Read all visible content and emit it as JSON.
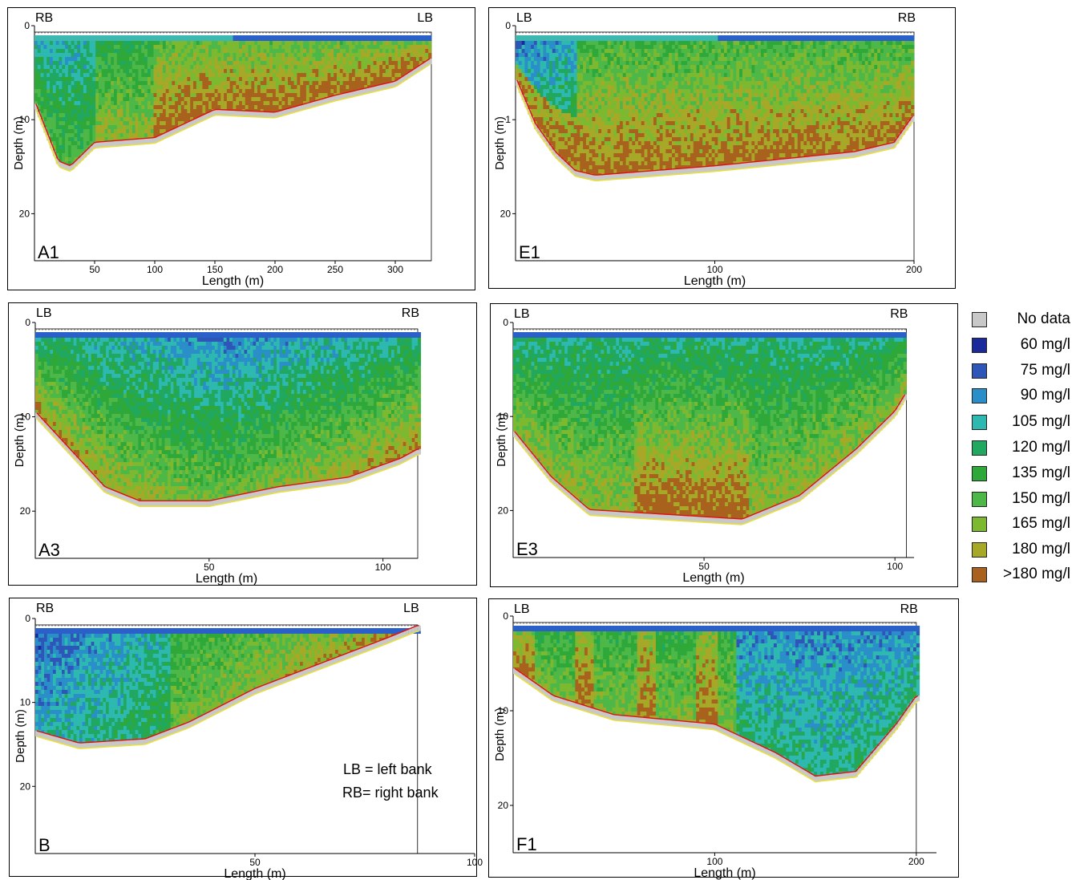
{
  "legend": {
    "items": [
      {
        "label": "No data",
        "color": "#c8c8c8"
      },
      {
        "label": "60 mg/l",
        "color": "#1a2a9a"
      },
      {
        "label": "75 mg/l",
        "color": "#2e56b8"
      },
      {
        "label": "90 mg/l",
        "color": "#2a8fc8"
      },
      {
        "label": "105 mg/l",
        "color": "#2db8b0"
      },
      {
        "label": "120 mg/l",
        "color": "#20a860"
      },
      {
        "label": "135 mg/l",
        "color": "#2fa83a"
      },
      {
        "label": "150 mg/l",
        "color": "#4db848"
      },
      {
        "label": "165 mg/l",
        "color": "#7cb830"
      },
      {
        "label": "180 mg/l",
        "color": "#a8a828"
      },
      {
        "label": ">180 mg/l",
        "color": "#a8621e"
      }
    ]
  },
  "notes": {
    "lb": "LB = left bank",
    "rb": "RB= right bank"
  },
  "chart_data": [
    {
      "type": "heatmap",
      "panel_label": "A1",
      "bank_left": "RB",
      "bank_right": "LB",
      "xlabel": "Length (m)",
      "ylabel": "Depth (m)",
      "x_ticks": [
        "50",
        "100",
        "150",
        "200",
        "250",
        "300"
      ],
      "y_ticks": [
        "0",
        "10",
        "20"
      ],
      "xlim": [
        0,
        330
      ],
      "ylim": [
        0,
        25
      ],
      "bed_depth_m": [
        [
          0,
          8.5
        ],
        [
          20,
          15
        ],
        [
          30,
          15.5
        ],
        [
          50,
          13
        ],
        [
          100,
          12.5
        ],
        [
          150,
          9.5
        ],
        [
          200,
          9.8
        ],
        [
          250,
          8
        ],
        [
          300,
          6.5
        ],
        [
          330,
          4
        ]
      ],
      "dominant_classes": "low concentration (90–105 mg/l) near right bank, 150–180 mg/l mid-channel, >180 mg/l near bed"
    },
    {
      "type": "heatmap",
      "panel_label": "E1",
      "bank_left": "LB",
      "bank_right": "RB",
      "xlabel": "Length (m)",
      "ylabel": "Depth (m)",
      "x_ticks": [
        "100",
        "200"
      ],
      "y_ticks": [
        "0",
        "1",
        "20"
      ],
      "xlim": [
        0,
        200
      ],
      "ylim": [
        0,
        25
      ],
      "bed_depth_m": [
        [
          0,
          6
        ],
        [
          10,
          11
        ],
        [
          20,
          14
        ],
        [
          30,
          16
        ],
        [
          40,
          16.5
        ],
        [
          100,
          15.5
        ],
        [
          170,
          14
        ],
        [
          190,
          13
        ],
        [
          200,
          10
        ]
      ],
      "dominant_classes": "60–75 mg/l near left bank surface, 150–165 mg/l upper column, >180 mg/l lower column"
    },
    {
      "type": "heatmap",
      "panel_label": "A3",
      "bank_left": "LB",
      "bank_right": "RB",
      "xlabel": "Length (m)",
      "ylabel": "Depth (m)",
      "x_ticks": [
        "50",
        "100"
      ],
      "y_ticks": [
        "0",
        "10",
        "20"
      ],
      "xlim": [
        0,
        110
      ],
      "ylim": [
        0,
        25
      ],
      "bed_depth_m": [
        [
          0,
          10
        ],
        [
          10,
          14
        ],
        [
          20,
          18
        ],
        [
          30,
          19.5
        ],
        [
          50,
          19.5
        ],
        [
          70,
          18
        ],
        [
          90,
          17
        ],
        [
          105,
          15
        ],
        [
          110,
          14
        ]
      ],
      "dominant_classes": "60–90 mg/l upper column, 105–150 mg/l middle, 165–>180 mg/l near bed"
    },
    {
      "type": "heatmap",
      "panel_label": "E3",
      "bank_left": "LB",
      "bank_right": "RB",
      "xlabel": "Length (m)",
      "ylabel": "Depth (m)",
      "x_ticks": [
        "50",
        "100"
      ],
      "y_ticks": [
        "0",
        "10",
        "20"
      ],
      "xlim": [
        0,
        105
      ],
      "ylim": [
        0,
        25
      ],
      "bed_depth_m": [
        [
          0,
          12
        ],
        [
          10,
          17
        ],
        [
          20,
          20.5
        ],
        [
          40,
          21
        ],
        [
          60,
          21.5
        ],
        [
          75,
          19
        ],
        [
          90,
          14
        ],
        [
          100,
          10
        ],
        [
          103,
          8
        ]
      ],
      "dominant_classes": "105–150 mg/l in most of the section, >180 mg/l in the deepest central zone"
    },
    {
      "type": "heatmap",
      "panel_label": "B",
      "bank_left": "RB",
      "bank_right": "LB",
      "xlabel": "Length (m)",
      "ylabel": "Depth (m)",
      "x_ticks": [
        "50",
        "100"
      ],
      "y_ticks": [
        "0",
        "10",
        "20"
      ],
      "xlim": [
        0,
        100
      ],
      "ylim": [
        0,
        28
      ],
      "bed_depth_m": [
        [
          0,
          14
        ],
        [
          10,
          15.5
        ],
        [
          25,
          15
        ],
        [
          35,
          13
        ],
        [
          50,
          9
        ],
        [
          65,
          6
        ],
        [
          80,
          3
        ],
        [
          87,
          1.5
        ]
      ],
      "dominant_classes": "60–90 mg/l near right bank, 150–>180 mg/l toward left bank"
    },
    {
      "type": "heatmap",
      "panel_label": "F1",
      "bank_left": "LB",
      "bank_right": "RB",
      "xlabel": "Length (m)",
      "ylabel": "Depth (m)",
      "x_ticks": [
        "100",
        "200"
      ],
      "y_ticks": [
        "0",
        "10",
        "20"
      ],
      "xlim": [
        0,
        210
      ],
      "ylim": [
        0,
        25
      ],
      "bed_depth_m": [
        [
          0,
          6
        ],
        [
          20,
          9
        ],
        [
          50,
          11
        ],
        [
          100,
          12
        ],
        [
          130,
          15
        ],
        [
          150,
          17.5
        ],
        [
          170,
          17
        ],
        [
          190,
          12
        ],
        [
          200,
          9
        ]
      ],
      "dominant_classes": ">180 mg/l bands in left half, 60–105 mg/l in right half"
    }
  ]
}
